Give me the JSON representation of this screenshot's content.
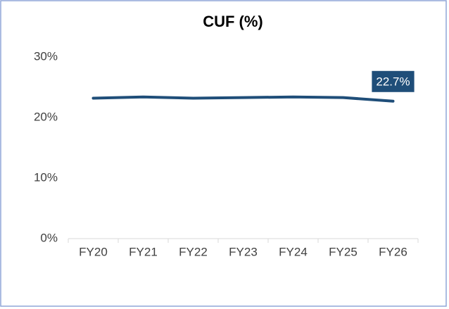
{
  "chart_data": {
    "type": "line",
    "title": "CUF (%)",
    "categories": [
      "FY20",
      "FY21",
      "FY22",
      "FY23",
      "FY24",
      "FY25",
      "FY26"
    ],
    "series": [
      {
        "name": "CUF",
        "color": "#1f4e79",
        "values": [
          23.2,
          23.4,
          23.2,
          23.3,
          23.4,
          23.3,
          22.7
        ],
        "value_labels": [
          null,
          null,
          null,
          null,
          null,
          null,
          "22.7%"
        ]
      }
    ],
    "ylim": [
      0,
      30
    ],
    "yticks": [
      {
        "value": 0,
        "label": "0%"
      },
      {
        "value": 10,
        "label": "10%"
      },
      {
        "value": 20,
        "label": "20%"
      },
      {
        "value": 30,
        "label": "30%"
      }
    ],
    "grid": false
  }
}
